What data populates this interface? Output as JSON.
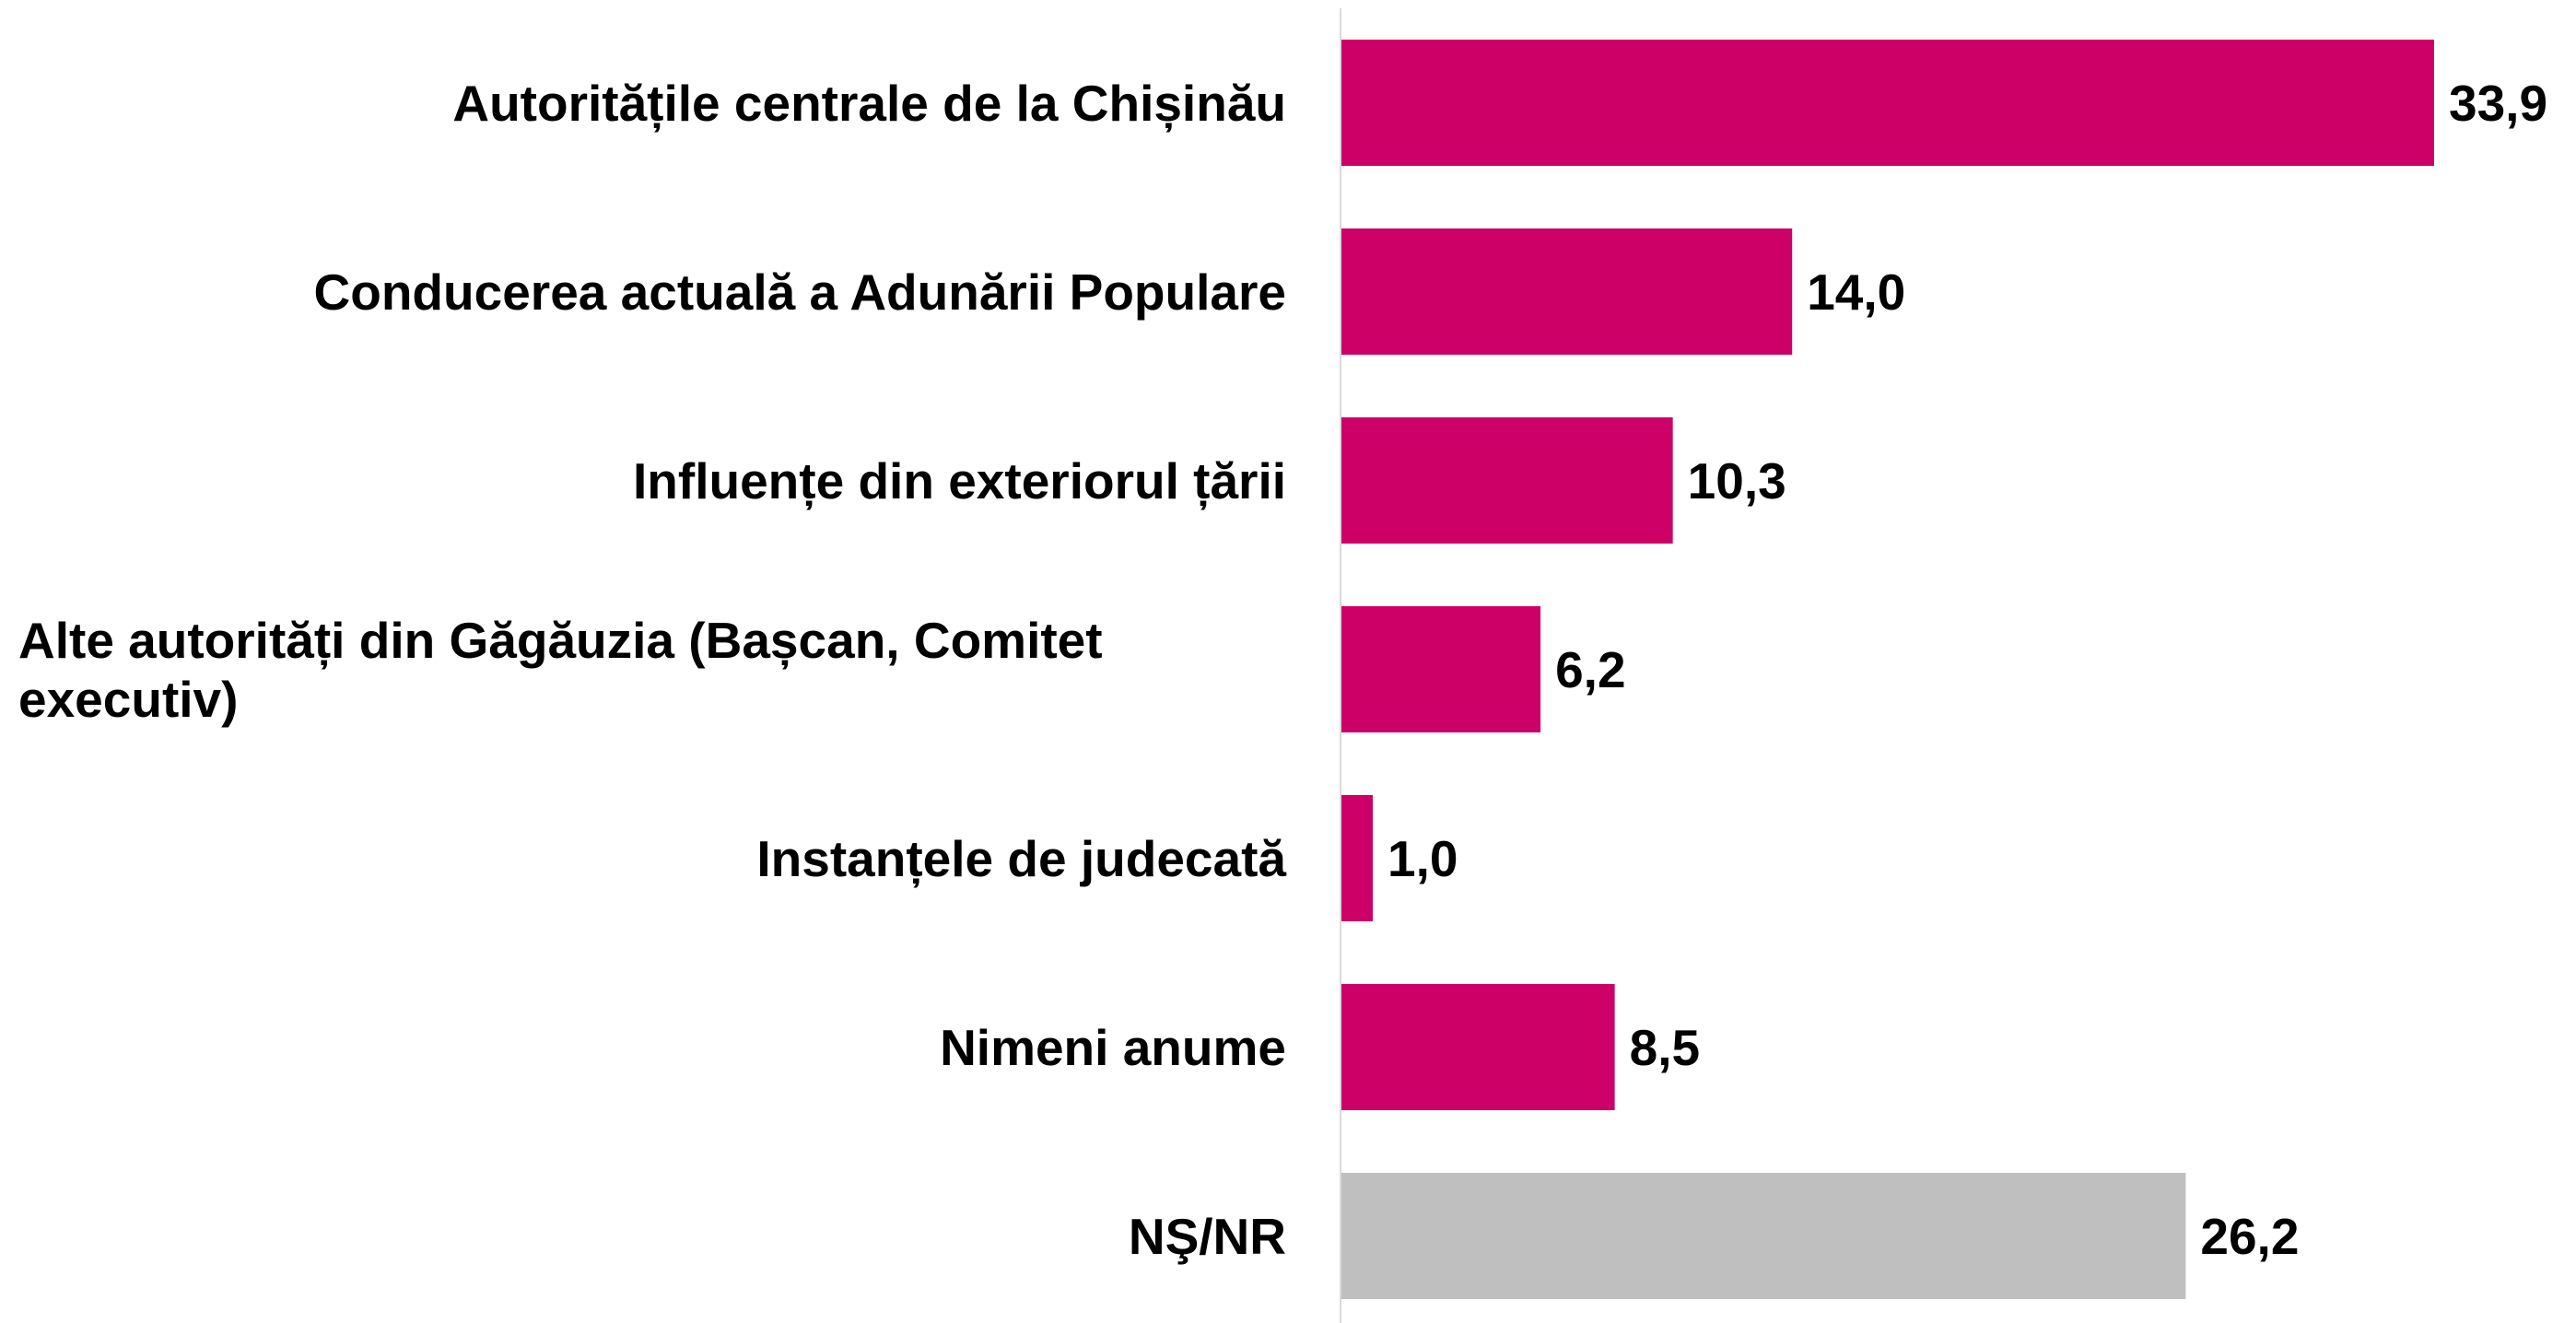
{
  "chart_data": {
    "type": "bar",
    "orientation": "horizontal",
    "categories": [
      "Autoritățile centrale de la Chișinău",
      "Conducerea actuală a Adunării Populare",
      "Influențe din exteriorul țării",
      "Alte autorități din Găgăuzia (Bașcan, Comitet executiv)",
      "Instanțele de judecată",
      "Nimeni anume",
      "NŞ/NR"
    ],
    "values": [
      33.9,
      14.0,
      10.3,
      6.2,
      1.0,
      8.5,
      26.2
    ],
    "value_labels": [
      "33,9",
      "14,0",
      "10,3",
      "6,2",
      "1,0",
      "8,5",
      "26,2"
    ],
    "colors": [
      "#cc0066",
      "#cc0066",
      "#cc0066",
      "#cc0066",
      "#cc0066",
      "#cc0066",
      "#bfbfbf"
    ]
  }
}
